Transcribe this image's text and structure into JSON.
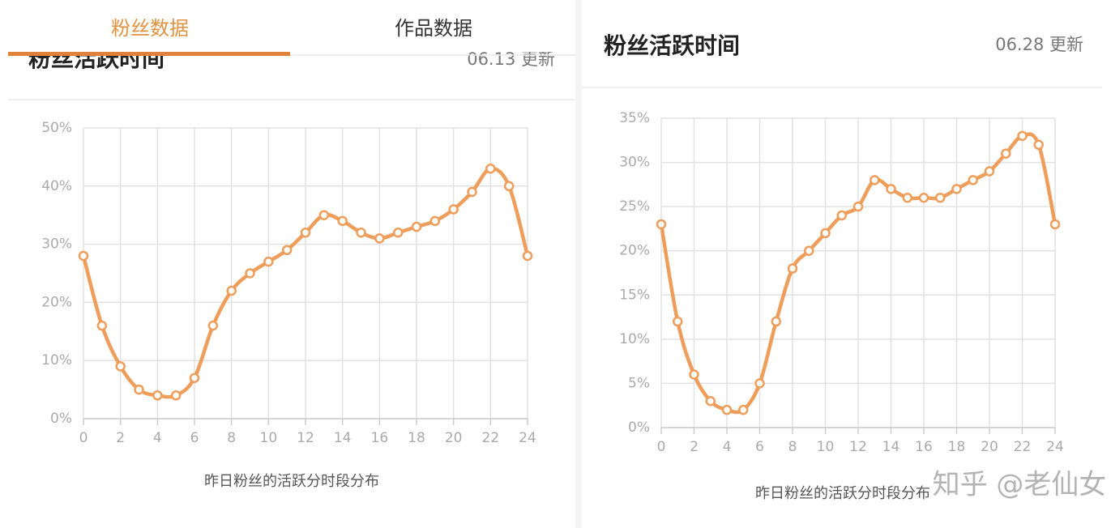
{
  "tabs": [
    "粉丝数据",
    "作品数据"
  ],
  "watermark": "知乎 @老仙女",
  "chart_data": [
    {
      "type": "line",
      "title": "粉丝活跃时间",
      "subtitle": "06.13 更新",
      "xlabel": "昨日粉丝的活跃分时段分布",
      "x": [
        0,
        1,
        2,
        3,
        4,
        5,
        6,
        7,
        8,
        9,
        10,
        11,
        12,
        13,
        14,
        15,
        16,
        17,
        18,
        19,
        20,
        21,
        22,
        23,
        24
      ],
      "values": [
        28,
        16,
        9,
        5,
        4,
        4,
        7,
        16,
        22,
        25,
        27,
        29,
        32,
        35,
        34,
        32,
        31,
        32,
        33,
        34,
        36,
        39,
        43,
        40,
        28
      ],
      "color": "#ee9d5b",
      "grid": true,
      "xlim": [
        0,
        24
      ],
      "xticks": [
        0,
        2,
        4,
        6,
        8,
        10,
        12,
        14,
        16,
        18,
        20,
        22,
        24
      ],
      "ylim": [
        0,
        50
      ],
      "yticks": [
        {
          "value": 0,
          "label": "0%"
        },
        {
          "value": 10,
          "label": "10%"
        },
        {
          "value": 20,
          "label": "20%"
        },
        {
          "value": 30,
          "label": "30%"
        },
        {
          "value": 40,
          "label": "40%"
        },
        {
          "value": 50,
          "label": "50%"
        }
      ]
    },
    {
      "type": "line",
      "title": "粉丝活跃时间",
      "subtitle": "06.28 更新",
      "xlabel": "昨日粉丝的活跃分时段分布",
      "x": [
        0,
        1,
        2,
        3,
        4,
        5,
        6,
        7,
        8,
        9,
        10,
        11,
        12,
        13,
        14,
        15,
        16,
        17,
        18,
        19,
        20,
        21,
        22,
        23,
        24
      ],
      "values": [
        23,
        12,
        6,
        3,
        2,
        2,
        5,
        12,
        18,
        20,
        22,
        24,
        25,
        28,
        27,
        26,
        26,
        26,
        27,
        28,
        29,
        31,
        33,
        32,
        23
      ],
      "color": "#ee9d5b",
      "grid": true,
      "xlim": [
        0,
        24
      ],
      "xticks": [
        0,
        2,
        4,
        6,
        8,
        10,
        12,
        14,
        16,
        18,
        20,
        22,
        24
      ],
      "ylim": [
        0,
        35
      ],
      "yticks": [
        {
          "value": 0,
          "label": "0%"
        },
        {
          "value": 5,
          "label": "5%"
        },
        {
          "value": 10,
          "label": "10%"
        },
        {
          "value": 15,
          "label": "15%"
        },
        {
          "value": 20,
          "label": "20%"
        },
        {
          "value": 25,
          "label": "25%"
        },
        {
          "value": 30,
          "label": "30%"
        },
        {
          "value": 35,
          "label": "35%"
        }
      ]
    }
  ]
}
